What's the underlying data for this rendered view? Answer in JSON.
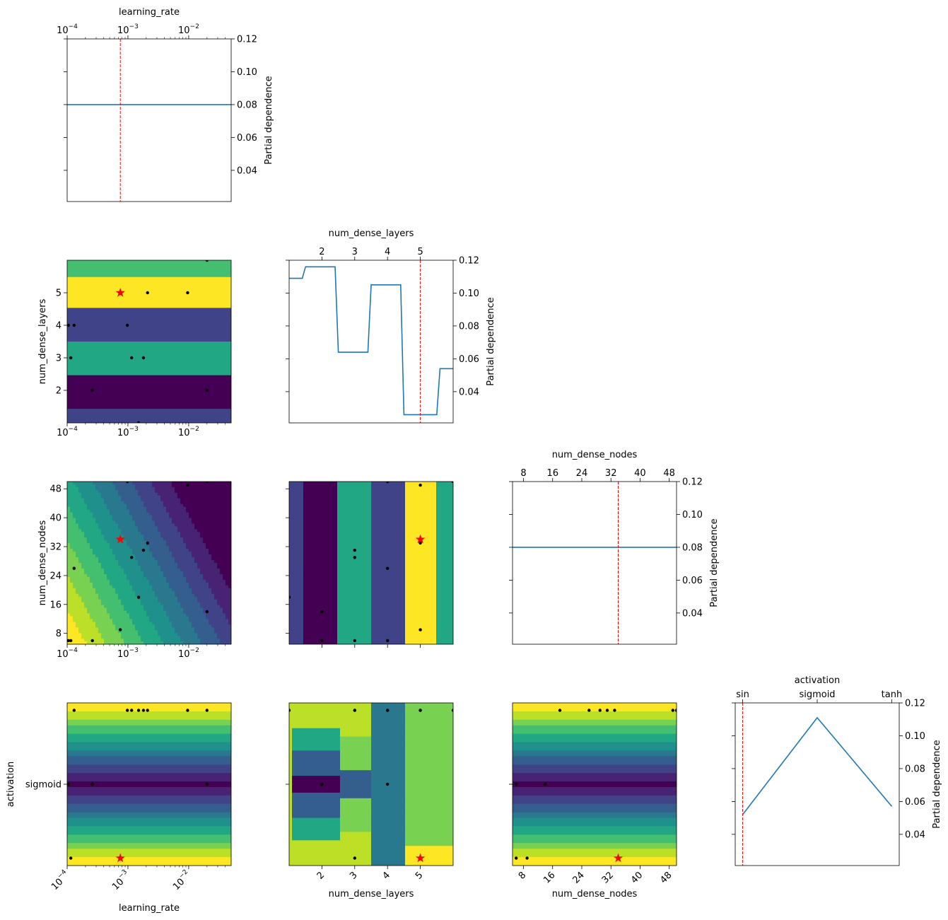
{
  "chart_data": {
    "type": "partial-dependence-matrix",
    "ylabel_1d": "Partial dependence",
    "pd_ylim": [
      0.021,
      0.12
    ],
    "pd_yticks": [
      0.04,
      0.06,
      0.08,
      0.1,
      0.12
    ],
    "pd_ytick_labels": [
      "0.04",
      "0.06",
      "0.08",
      "0.10",
      "0.12"
    ],
    "dims": [
      {
        "name": "learning_rate",
        "label": "learning_rate",
        "scale": "log",
        "range": [
          0.0001,
          0.05
        ],
        "ticks": [
          0.0001,
          0.001,
          0.01
        ],
        "tick_labels": [
          "10",
          "10",
          "10"
        ],
        "tick_exponents": [
          "−4",
          "−3",
          "−2"
        ],
        "best": 0.00075
      },
      {
        "name": "num_dense_layers",
        "label": "num_dense_layers",
        "scale": "linear",
        "range": [
          1.0,
          6.0
        ],
        "ticks": [
          2,
          3,
          4,
          5
        ],
        "tick_labels": [
          "2",
          "3",
          "4",
          "5"
        ],
        "best": 5
      },
      {
        "name": "num_dense_nodes",
        "label": "num_dense_nodes",
        "scale": "linear",
        "range": [
          5,
          50
        ],
        "ticks": [
          8,
          16,
          24,
          32,
          40,
          48
        ],
        "tick_labels": [
          "8",
          "16",
          "24",
          "32",
          "40",
          "48"
        ],
        "best": 34
      },
      {
        "name": "activation",
        "label": "activation",
        "scale": "categorical",
        "range": [
          -0.1,
          2.1
        ],
        "ticks": [
          0,
          1,
          2
        ],
        "tick_labels": [
          "sin",
          "sigmoid",
          "tanh"
        ],
        "y_ticks": [
          1
        ],
        "y_tick_labels": [
          "sigmoid"
        ],
        "best": 0
      }
    ],
    "partial_dependence_1d": [
      {
        "dim": "learning_rate",
        "x": [
          0.0001,
          0.05
        ],
        "y": [
          0.08,
          0.08
        ]
      },
      {
        "dim": "num_dense_layers",
        "x": [
          1.0,
          1.4,
          1.5,
          2.4,
          2.5,
          3.4,
          3.5,
          4.4,
          4.5,
          4.6,
          5.5,
          5.6,
          6.0
        ],
        "y": [
          0.109,
          0.109,
          0.116,
          0.116,
          0.064,
          0.064,
          0.105,
          0.105,
          0.026,
          0.026,
          0.026,
          0.054,
          0.054
        ]
      },
      {
        "dim": "num_dense_nodes",
        "x": [
          5,
          50
        ],
        "y": [
          0.08,
          0.08
        ]
      },
      {
        "dim": "activation",
        "x": [
          0,
          1,
          2
        ],
        "y": [
          0.052,
          0.111,
          0.057
        ]
      }
    ],
    "samples": [
      {
        "learning_rate": 0.000105,
        "num_dense_layers": 4,
        "num_dense_nodes": 6,
        "activation": 1
      },
      {
        "learning_rate": 0.000115,
        "num_dense_layers": 3,
        "num_dense_nodes": 6,
        "activation": 0
      },
      {
        "learning_rate": 0.00013,
        "num_dense_layers": 4,
        "num_dense_nodes": 26,
        "activation": 2
      },
      {
        "learning_rate": 0.00026,
        "num_dense_layers": 2,
        "num_dense_nodes": 6,
        "activation": 1
      },
      {
        "learning_rate": 0.00075,
        "num_dense_layers": 5,
        "num_dense_nodes": 9,
        "activation": 0
      },
      {
        "learning_rate": 0.00098,
        "num_dense_layers": 4,
        "num_dense_nodes": 50,
        "activation": 2
      },
      {
        "learning_rate": 0.00115,
        "num_dense_layers": 3,
        "num_dense_nodes": 29,
        "activation": 2
      },
      {
        "learning_rate": 0.0015,
        "num_dense_layers": 1,
        "num_dense_nodes": 18,
        "activation": 2
      },
      {
        "learning_rate": 0.0018,
        "num_dense_layers": 3,
        "num_dense_nodes": 31,
        "activation": 2
      },
      {
        "learning_rate": 0.0021,
        "num_dense_layers": 5,
        "num_dense_nodes": 33,
        "activation": 2
      },
      {
        "learning_rate": 0.0096,
        "num_dense_layers": 5,
        "num_dense_nodes": 49,
        "activation": 2
      },
      {
        "learning_rate": 0.02,
        "num_dense_layers": 2,
        "num_dense_nodes": 14,
        "activation": 1
      },
      {
        "learning_rate": 0.02,
        "num_dense_layers": 6,
        "num_dense_nodes": 50,
        "activation": 2
      }
    ]
  }
}
